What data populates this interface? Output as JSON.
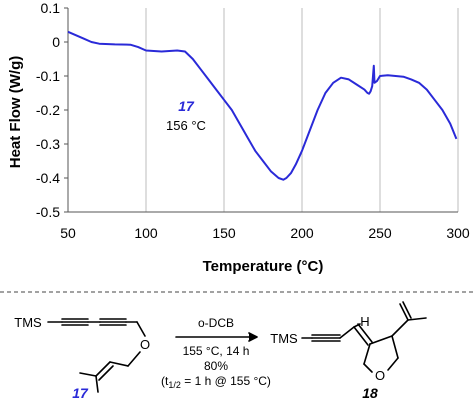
{
  "chart_data": {
    "type": "line",
    "xlabel": "Temperature (°C)",
    "ylabel": "Heat Flow (W/g)",
    "xlim": [
      50,
      300
    ],
    "ylim": [
      -0.5,
      0.1
    ],
    "x_ticks": [
      50,
      100,
      150,
      200,
      250,
      300
    ],
    "y_ticks": [
      0.1,
      0,
      -0.1,
      -0.2,
      -0.3,
      -0.4,
      -0.5
    ],
    "y_tick_labels": [
      "0.1",
      "0",
      "-0.1",
      "-0.2",
      "-0.3",
      "-0.4",
      "-0.5"
    ],
    "grid": "vertical",
    "line_color": "#2a2ad8",
    "annotation": {
      "compound": "17",
      "temperature": "156 °C"
    },
    "series": [
      {
        "color": "#2a2ad8",
        "x": [
          50,
          55,
          60,
          65,
          70,
          80,
          90,
          95,
          100,
          110,
          120,
          125,
          130,
          135,
          140,
          145,
          150,
          155,
          160,
          165,
          170,
          175,
          180,
          185,
          188,
          190,
          193,
          196,
          200,
          205,
          210,
          215,
          220,
          225,
          230,
          235,
          240,
          242,
          243,
          244,
          245,
          246,
          246.5,
          248,
          250,
          255,
          260,
          265,
          270,
          275,
          280,
          285,
          290,
          295,
          299
        ],
        "y": [
          0.03,
          0.02,
          0.01,
          0.0,
          -0.005,
          -0.007,
          -0.008,
          -0.015,
          -0.025,
          -0.028,
          -0.025,
          -0.028,
          -0.05,
          -0.08,
          -0.11,
          -0.14,
          -0.17,
          -0.2,
          -0.24,
          -0.28,
          -0.32,
          -0.35,
          -0.38,
          -0.4,
          -0.405,
          -0.4,
          -0.385,
          -0.36,
          -0.32,
          -0.26,
          -0.2,
          -0.15,
          -0.12,
          -0.105,
          -0.11,
          -0.125,
          -0.14,
          -0.15,
          -0.152,
          -0.145,
          -0.13,
          -0.07,
          -0.12,
          -0.115,
          -0.1,
          -0.098,
          -0.1,
          -0.102,
          -0.11,
          -0.12,
          -0.14,
          -0.17,
          -0.2,
          -0.24,
          -0.285
        ]
      }
    ]
  },
  "scheme": {
    "reactant_group": "TMS",
    "reactant_label": "17",
    "reagent": "o-DCB",
    "conditions": "155 °C, 14 h",
    "yield": "80%",
    "half_life_prefix": "(t",
    "half_life_sub": "1/2",
    "half_life_suffix": " = 1 h @ 155 °C)",
    "product_group": "TMS",
    "product_h": "H",
    "product_o": "O",
    "reactant_o": "O",
    "product_label": "18"
  }
}
